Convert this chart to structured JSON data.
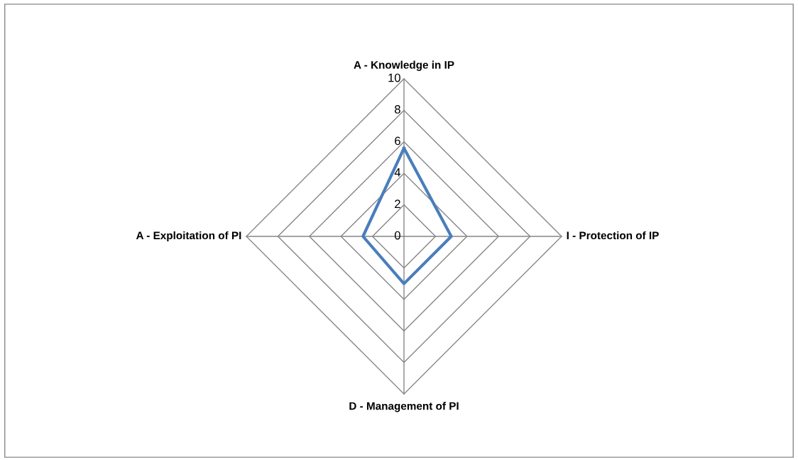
{
  "chart_data": {
    "type": "radar",
    "categories": [
      "A - Knowledge in IP",
      "I - Protection of IP",
      "D - Management of PI",
      "A - Exploitation of PI"
    ],
    "series": [
      {
        "color": "#4a7ebb",
        "values": [
          5.6,
          3.0,
          3.0,
          2.6
        ]
      }
    ],
    "ylim": [
      0,
      10
    ],
    "yticks": [
      0,
      2,
      4,
      6,
      8,
      10
    ],
    "grid": true
  }
}
